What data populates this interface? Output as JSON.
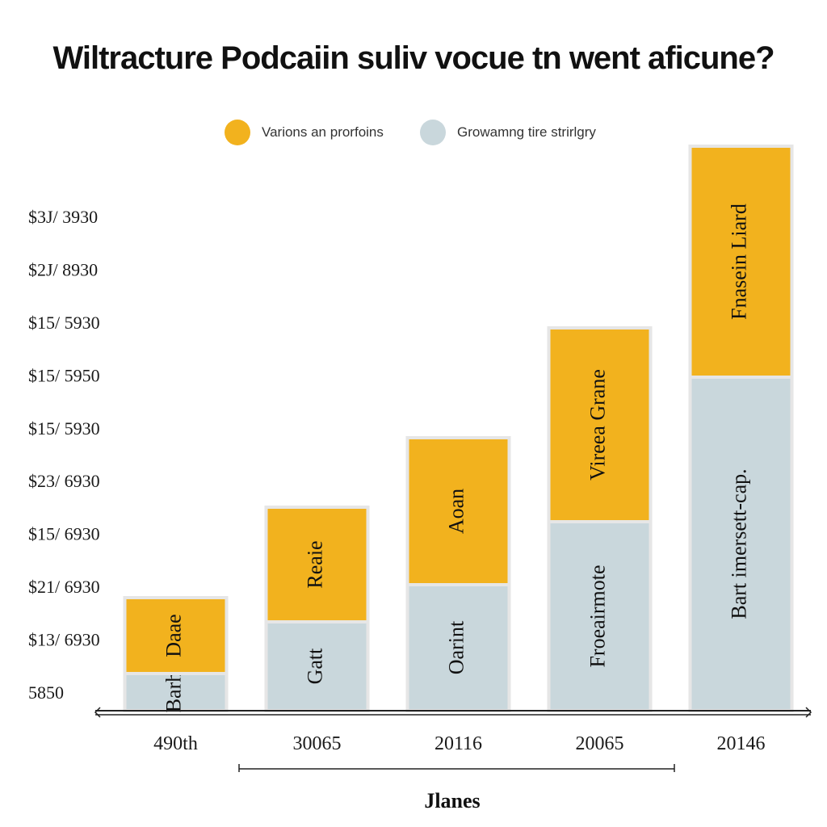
{
  "colors": {
    "series_1": "#F2B21E",
    "series_2": "#C9D7DC",
    "outline": "#E6E6E6",
    "axis": "#222222"
  },
  "chart_data": {
    "type": "bar",
    "stacked": true,
    "title": "Wiltracture Podcaiin suliv vocue tn went aficune?",
    "xlabel": "Jlanes",
    "ylabel": "",
    "categories": [
      "490th",
      "30065",
      "20116",
      "20065",
      "20146"
    ],
    "y_tick_labels": [
      "$3J/ 3930",
      "$2J/ 8930",
      "$15/ 5930",
      "$15/ 5950",
      "$15/ 5930",
      "$23/ 6930",
      "$15/ 6930",
      "$21/ 6930",
      "$13/ 6930",
      "5850"
    ],
    "ylim": [
      0,
      700
    ],
    "grid": false,
    "legend_position": "top-center",
    "series": [
      {
        "name": "Growamng tire strirlgry",
        "color_key": "series_2",
        "values": [
          46,
          110,
          156,
          234,
          413
        ],
        "segment_labels": [
          "Barh",
          "Gatt",
          "Oarint",
          "Froeairmote",
          "Bart imersett-cap."
        ]
      },
      {
        "name": "Varions an prorfoins",
        "color_key": "series_1",
        "values": [
          94,
          142,
          182,
          240,
          286
        ],
        "segment_labels": [
          "Daae",
          "Reaie",
          "Aoan",
          "Vireea Grane",
          "Fnasein Liard"
        ]
      }
    ]
  }
}
